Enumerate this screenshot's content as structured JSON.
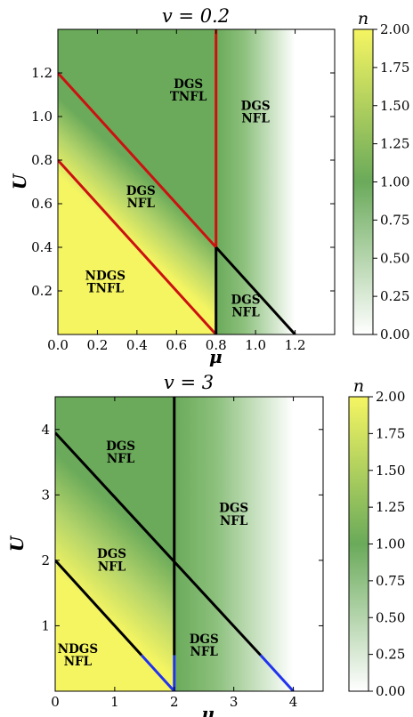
{
  "colors": {
    "yellow": "#f5f562",
    "green": "#6aaa5a",
    "white": "#ffffff",
    "red_line": "#cc1111",
    "black_line": "#000000",
    "blue_line": "#2233ee"
  },
  "chart_data": [
    {
      "type": "heatmap",
      "title": "v = 0.2",
      "xlabel": "μ",
      "ylabel": "U",
      "xlim": [
        0,
        1.4
      ],
      "ylim": [
        0,
        1.4
      ],
      "xticks": [
        0,
        0.2,
        0.4,
        0.6,
        0.8,
        1.0,
        1.2
      ],
      "xtick_labels": [
        "0.0",
        "0.2",
        "0.4",
        "0.6",
        "0.8",
        "1.0",
        "1.2"
      ],
      "yticks": [
        0.2,
        0.4,
        0.6,
        0.8,
        1.0,
        1.2
      ],
      "ytick_labels": [
        "0.2",
        "0.4",
        "0.6",
        "0.8",
        "1.0",
        "1.2"
      ],
      "colorbar": {
        "label": "n",
        "range": [
          0,
          2
        ],
        "ticks": [
          "0.00",
          "0.25",
          "0.50",
          "0.75",
          "1.00",
          "1.25",
          "1.50",
          "1.75",
          "2.00"
        ]
      },
      "lines": [
        {
          "color": "red",
          "x": [
            0,
            0.8
          ],
          "y": [
            0.8,
            0
          ]
        },
        {
          "color": "red",
          "x": [
            0,
            0.8
          ],
          "y": [
            1.2,
            0.4
          ]
        },
        {
          "color": "red",
          "x": [
            0.8,
            0.8
          ],
          "y": [
            0.4,
            1.4
          ]
        },
        {
          "color": "black",
          "x": [
            0.8,
            0.8
          ],
          "y": [
            0,
            0.4
          ]
        },
        {
          "color": "black",
          "x": [
            0.8,
            1.2
          ],
          "y": [
            0.4,
            0
          ]
        }
      ],
      "regions": [
        {
          "lines": [
            "DGS",
            "TNFL"
          ],
          "x": 0.66,
          "y": 1.12
        },
        {
          "lines": [
            "DGS",
            "NFL"
          ],
          "x": 1.0,
          "y": 1.02
        },
        {
          "lines": [
            "DGS",
            "NFL"
          ],
          "x": 0.42,
          "y": 0.63
        },
        {
          "lines": [
            "NDGS",
            "TNFL"
          ],
          "x": 0.24,
          "y": 0.24
        },
        {
          "lines": [
            "DGS",
            "NFL"
          ],
          "x": 0.95,
          "y": 0.13
        }
      ]
    },
    {
      "type": "heatmap",
      "title": "v = 3",
      "xlabel": "μ",
      "ylabel": "U",
      "xlim": [
        0,
        4.5
      ],
      "ylim": [
        0,
        4.5
      ],
      "xticks": [
        0,
        1,
        2,
        3,
        4
      ],
      "xtick_labels": [
        "0",
        "1",
        "2",
        "3",
        "4"
      ],
      "yticks": [
        1,
        2,
        3,
        4
      ],
      "ytick_labels": [
        "1",
        "2",
        "3",
        "4"
      ],
      "colorbar": {
        "label": "n",
        "range": [
          0,
          2
        ],
        "ticks": [
          "0.00",
          "0.25",
          "0.50",
          "0.75",
          "1.00",
          "1.25",
          "1.50",
          "1.75",
          "2.00"
        ]
      },
      "lines": [
        {
          "color": "black",
          "x": [
            0,
            1.45
          ],
          "y": [
            2.0,
            0.55
          ]
        },
        {
          "color": "blue",
          "x": [
            1.45,
            2.0
          ],
          "y": [
            0.55,
            0
          ]
        },
        {
          "color": "black",
          "x": [
            0,
            3.45
          ],
          "y": [
            3.95,
            0.55
          ]
        },
        {
          "color": "blue",
          "x": [
            3.45,
            4.0
          ],
          "y": [
            0.55,
            0
          ]
        },
        {
          "color": "black",
          "x": [
            2.0,
            2.0
          ],
          "y": [
            0.55,
            4.5
          ]
        },
        {
          "color": "blue",
          "x": [
            2.0,
            2.0
          ],
          "y": [
            0,
            0.55
          ]
        }
      ],
      "regions": [
        {
          "lines": [
            "DGS",
            "NFL"
          ],
          "x": 1.1,
          "y": 3.65
        },
        {
          "lines": [
            "DGS",
            "NFL"
          ],
          "x": 3.0,
          "y": 2.7
        },
        {
          "lines": [
            "DGS",
            "NFL"
          ],
          "x": 0.95,
          "y": 2.0
        },
        {
          "lines": [
            "NDGS",
            "NFL"
          ],
          "x": 0.38,
          "y": 0.55
        },
        {
          "lines": [
            "DGS",
            "NFL"
          ],
          "x": 2.5,
          "y": 0.7
        }
      ]
    }
  ]
}
